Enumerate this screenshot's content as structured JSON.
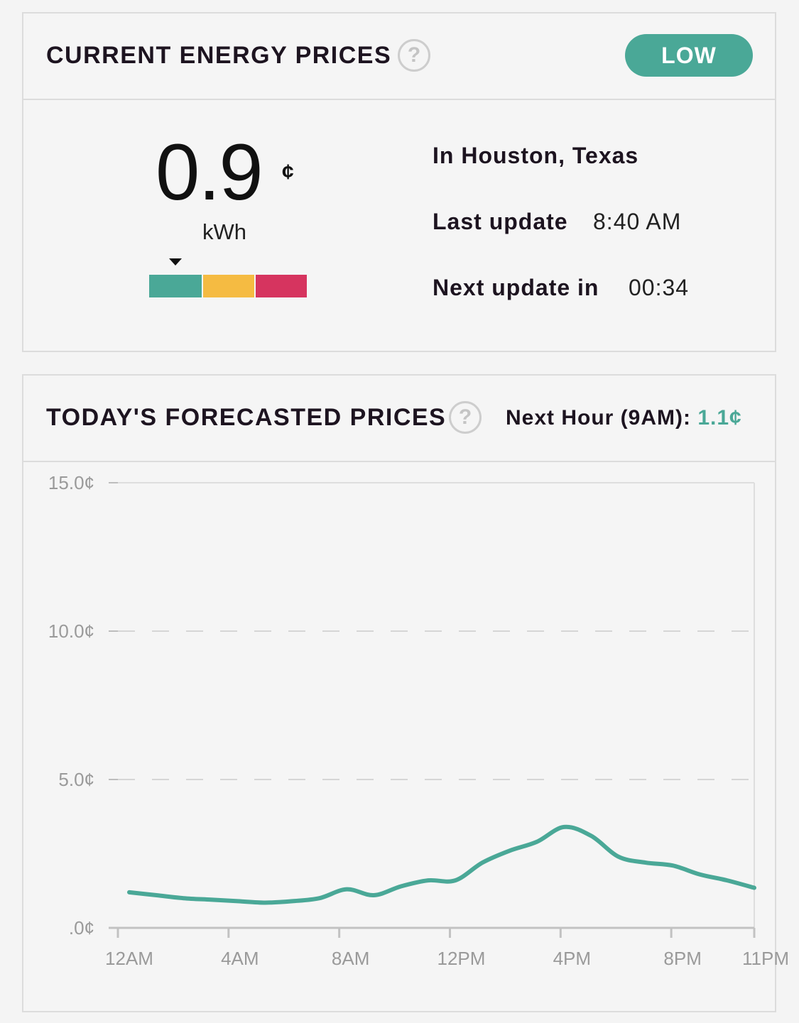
{
  "current": {
    "title": "CURRENT ENERGY PRICES",
    "help_icon": "question-circle-icon",
    "badge": "LOW",
    "price": "0.9",
    "price_unit_symbol": "¢",
    "price_unit": "kWh",
    "meter_colors": [
      "#4aa897",
      "#f5bb42",
      "#d6345f"
    ],
    "location": "In Houston, Texas",
    "last_update_label": "Last update",
    "last_update_value": "8:40 AM",
    "next_update_label": "Next update in",
    "next_update_value": "00:34"
  },
  "forecast": {
    "title": "TODAY'S FORECASTED PRICES",
    "help_icon": "question-circle-icon",
    "next_hour_label": "Next Hour (9AM): ",
    "next_hour_value": "1.1¢"
  },
  "chart_data": {
    "type": "line",
    "line_color": "#4aa897",
    "y_ticks": [
      15.0,
      10.0,
      5.0,
      0.0
    ],
    "y_tick_labels": [
      "15.0¢",
      "10.0¢",
      "5.0¢",
      ".0¢"
    ],
    "ylim": [
      0,
      15
    ],
    "x_tick_labels": [
      "12AM",
      "4AM",
      "8AM",
      "12PM",
      "4PM",
      "8PM",
      "11PM"
    ],
    "x_tick_hours": [
      0,
      4,
      8,
      12,
      16,
      20,
      23
    ],
    "grid": "dashed horizontal",
    "series": [
      {
        "x": [
          0,
          1,
          2,
          3,
          4,
          5,
          6,
          7,
          8,
          9,
          10,
          11,
          12,
          13,
          14,
          15,
          16,
          17,
          18,
          19,
          20,
          21,
          22,
          23
        ],
        "values": [
          1.2,
          1.1,
          1.0,
          0.95,
          0.9,
          0.85,
          0.9,
          1.0,
          1.3,
          1.1,
          1.4,
          1.6,
          1.6,
          2.2,
          2.6,
          2.9,
          3.4,
          3.1,
          2.4,
          2.2,
          2.1,
          1.8,
          1.6,
          1.35
        ]
      }
    ]
  }
}
